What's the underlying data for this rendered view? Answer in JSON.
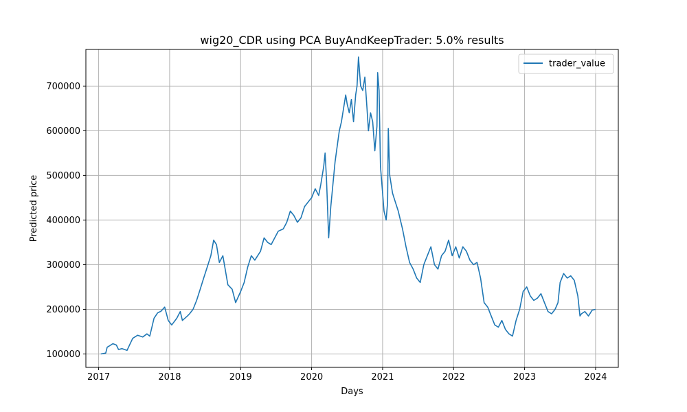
{
  "chart_data": {
    "type": "line",
    "title": "wig20_CDR using PCA BuyAndKeepTrader: 5.0% results",
    "xlabel": "Days",
    "ylabel": "Predicted price",
    "xlim": [
      2016.82,
      2024.32
    ],
    "ylim": [
      70000,
      782000
    ],
    "xticks": [
      2017,
      2018,
      2019,
      2020,
      2021,
      2022,
      2023,
      2024
    ],
    "xtick_labels": [
      "2017",
      "2018",
      "2019",
      "2020",
      "2021",
      "2022",
      "2023",
      "2024"
    ],
    "yticks": [
      100000,
      200000,
      300000,
      400000,
      500000,
      600000,
      700000
    ],
    "ytick_labels": [
      "100000",
      "200000",
      "300000",
      "400000",
      "500000",
      "600000",
      "700000"
    ],
    "grid": true,
    "legend": "upper right",
    "color": "#1f77b4",
    "series": [
      {
        "name": "trader_value",
        "x": [
          2017.03,
          2017.1,
          2017.12,
          2017.15,
          2017.2,
          2017.25,
          2017.28,
          2017.33,
          2017.4,
          2017.45,
          2017.48,
          2017.55,
          2017.62,
          2017.68,
          2017.72,
          2017.78,
          2017.83,
          2017.88,
          2017.93,
          2017.98,
          2018.03,
          2018.1,
          2018.15,
          2018.18,
          2018.25,
          2018.28,
          2018.33,
          2018.38,
          2018.43,
          2018.48,
          2018.53,
          2018.58,
          2018.62,
          2018.66,
          2018.7,
          2018.75,
          2018.82,
          2018.88,
          2018.93,
          2019.0,
          2019.05,
          2019.1,
          2019.15,
          2019.2,
          2019.28,
          2019.33,
          2019.38,
          2019.43,
          2019.48,
          2019.53,
          2019.6,
          2019.65,
          2019.7,
          2019.75,
          2019.8,
          2019.85,
          2019.9,
          2019.95,
          2020.0,
          2020.05,
          2020.1,
          2020.13,
          2020.17,
          2020.19,
          2020.21,
          2020.24,
          2020.27,
          2020.3,
          2020.33,
          2020.36,
          2020.39,
          2020.42,
          2020.45,
          2020.48,
          2020.5,
          2020.53,
          2020.56,
          2020.59,
          2020.62,
          2020.64,
          2020.66,
          2020.69,
          2020.72,
          2020.75,
          2020.78,
          2020.8,
          2020.83,
          2020.86,
          2020.89,
          2020.92,
          2020.93,
          2020.95,
          2020.97,
          2020.99,
          2021.02,
          2021.05,
          2021.07,
          2021.08,
          2021.1,
          2021.14,
          2021.18,
          2021.22,
          2021.28,
          2021.33,
          2021.38,
          2021.43,
          2021.48,
          2021.53,
          2021.58,
          2021.63,
          2021.68,
          2021.73,
          2021.78,
          2021.83,
          2021.88,
          2021.93,
          2021.98,
          2022.03,
          2022.08,
          2022.13,
          2022.18,
          2022.23,
          2022.28,
          2022.33,
          2022.38,
          2022.43,
          2022.48,
          2022.53,
          2022.58,
          2022.63,
          2022.68,
          2022.73,
          2022.78,
          2022.83,
          2022.88,
          2022.93,
          2022.98,
          2023.03,
          2023.08,
          2023.13,
          2023.18,
          2023.23,
          2023.28,
          2023.33,
          2023.38,
          2023.43,
          2023.47,
          2023.5,
          2023.55,
          2023.6,
          2023.65,
          2023.7,
          2023.75,
          2023.78,
          2023.8,
          2023.85,
          2023.9,
          2023.95,
          2024.0
        ],
        "values": [
          100000,
          102000,
          115000,
          118000,
          123000,
          120000,
          110000,
          112000,
          108000,
          125000,
          135000,
          142000,
          138000,
          145000,
          140000,
          180000,
          192000,
          196000,
          205000,
          175000,
          165000,
          180000,
          195000,
          175000,
          185000,
          190000,
          200000,
          220000,
          245000,
          270000,
          295000,
          320000,
          355000,
          345000,
          305000,
          320000,
          255000,
          245000,
          215000,
          240000,
          260000,
          295000,
          320000,
          310000,
          330000,
          360000,
          350000,
          345000,
          360000,
          375000,
          380000,
          395000,
          420000,
          410000,
          395000,
          405000,
          430000,
          440000,
          450000,
          470000,
          455000,
          480000,
          520000,
          550000,
          490000,
          360000,
          430000,
          480000,
          530000,
          565000,
          600000,
          620000,
          650000,
          680000,
          660000,
          640000,
          670000,
          620000,
          680000,
          700000,
          765000,
          700000,
          690000,
          720000,
          650000,
          600000,
          640000,
          620000,
          555000,
          610000,
          730000,
          690000,
          520000,
          480000,
          420000,
          400000,
          440000,
          605000,
          500000,
          460000,
          440000,
          420000,
          380000,
          340000,
          305000,
          290000,
          270000,
          260000,
          300000,
          320000,
          340000,
          300000,
          290000,
          320000,
          330000,
          355000,
          320000,
          340000,
          315000,
          340000,
          330000,
          310000,
          300000,
          305000,
          270000,
          215000,
          205000,
          185000,
          165000,
          160000,
          175000,
          155000,
          145000,
          140000,
          175000,
          200000,
          240000,
          250000,
          230000,
          220000,
          225000,
          235000,
          215000,
          195000,
          190000,
          200000,
          215000,
          260000,
          280000,
          270000,
          275000,
          265000,
          230000,
          185000,
          190000,
          195000,
          185000,
          198000,
          200000
        ]
      }
    ]
  }
}
